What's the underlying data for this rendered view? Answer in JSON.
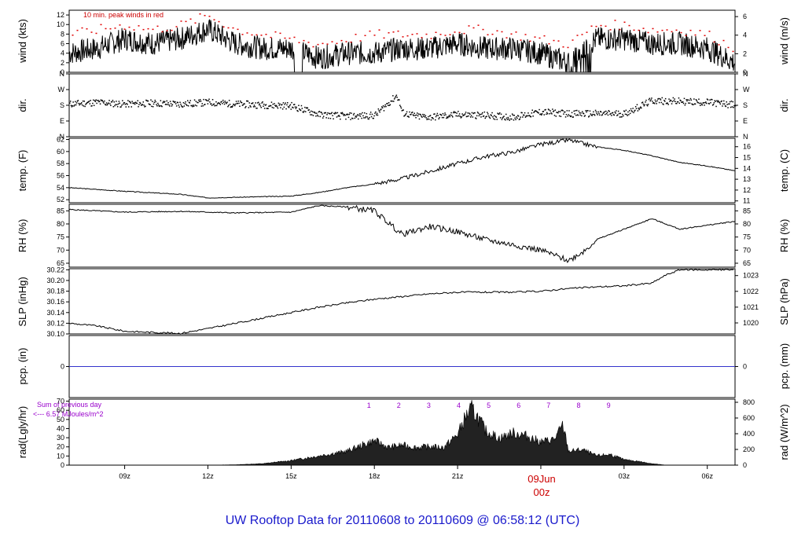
{
  "title": "UW Rooftop Data for 20110608  to  20110609 @ 06:58:12  (UTC)",
  "colors": {
    "peak": "#e00000",
    "precip_line": "#3333cc",
    "title": "#1a1acc",
    "note": "#9900cc",
    "date": "#cc0000"
  },
  "x_axis": {
    "ticks": [
      "09z",
      "12z",
      "15z",
      "18z",
      "21z",
      "03z",
      "06z"
    ],
    "date_label": "09Jun",
    "midnight_label": "00z"
  },
  "chart_data": [
    {
      "id": "wind",
      "type": "line",
      "ylabel_left": "wind (kts)",
      "ylabel_right": "wind (m/s)",
      "left_ticks": [
        "0",
        "2",
        "4",
        "6",
        "8",
        "10",
        "12"
      ],
      "right_ticks": [
        "0",
        "2",
        "4",
        "6"
      ],
      "annotation": "10 min. peak winds in red",
      "ylim": [
        0,
        13
      ],
      "hour_range": [
        7,
        31
      ],
      "series": [
        {
          "x": [
            7,
            8,
            9,
            10,
            11,
            12,
            13,
            14,
            15,
            16,
            17,
            18,
            19,
            20,
            21,
            22,
            23,
            24,
            25,
            26,
            27,
            28,
            29,
            30,
            31
          ],
          "y": [
            4,
            5,
            7,
            6,
            7,
            9,
            6,
            5,
            5,
            3,
            4,
            4,
            5,
            5,
            6,
            5,
            5,
            4,
            2,
            7,
            7,
            6,
            6,
            5,
            2
          ]
        },
        {
          "x": [
            7,
            8,
            9,
            10,
            11,
            12,
            13,
            14,
            15,
            16,
            17,
            18,
            19,
            20,
            21,
            22,
            23,
            24,
            25,
            26,
            27,
            28,
            29,
            30,
            31
          ],
          "y": [
            8,
            9,
            10,
            9,
            10,
            12,
            9,
            8,
            7,
            6,
            7,
            8,
            8,
            8,
            9,
            9,
            8,
            7,
            6,
            10,
            10,
            9,
            9,
            8,
            5
          ]
        }
      ]
    },
    {
      "id": "dir",
      "type": "scatter",
      "ylabel_left": "dir.",
      "ylabel_right": "dir.",
      "left_ticks": [
        "N",
        "E",
        "S",
        "W",
        "N"
      ],
      "right_ticks": [
        "N",
        "E",
        "S",
        "W",
        "N"
      ],
      "ylim": [
        0,
        360
      ],
      "series": [
        {
          "x": [
            7,
            8,
            9,
            10,
            11,
            12,
            13,
            14,
            15,
            16,
            17,
            18,
            18.8,
            19,
            19.5,
            20,
            21,
            22,
            23,
            24,
            25,
            26,
            27,
            28,
            29,
            30,
            31
          ],
          "y": [
            190,
            200,
            190,
            195,
            190,
            200,
            190,
            185,
            180,
            130,
            120,
            125,
            240,
            140,
            120,
            115,
            130,
            125,
            115,
            145,
            135,
            135,
            135,
            210,
            205,
            200,
            185
          ]
        }
      ]
    },
    {
      "id": "temp",
      "type": "line",
      "ylabel_left": "temp. (F)",
      "ylabel_right": "temp. (C)",
      "left_ticks": [
        "52",
        "54",
        "56",
        "58",
        "60",
        "62"
      ],
      "right_ticks": [
        "11",
        "12",
        "13",
        "14",
        "15",
        "16"
      ],
      "ylim": [
        51.5,
        62.2
      ],
      "series": [
        {
          "x": [
            7,
            9,
            11,
            12,
            14,
            15,
            16,
            17,
            18,
            19,
            20,
            21,
            22,
            23,
            24,
            25,
            26,
            27,
            28,
            29,
            30,
            31
          ],
          "y": [
            54,
            53.4,
            52.9,
            52.3,
            52.5,
            52.6,
            53.2,
            54.0,
            54.6,
            55.5,
            56.7,
            58.0,
            59.2,
            59.9,
            61.2,
            61.9,
            60.8,
            60.2,
            59.3,
            58.2,
            57.6,
            56.8
          ]
        }
      ]
    },
    {
      "id": "rh",
      "type": "line",
      "ylabel_left": "RH (%)",
      "ylabel_right": "RH (%)",
      "left_ticks": [
        "65",
        "70",
        "75",
        "80",
        "85"
      ],
      "right_ticks": [
        "65",
        "70",
        "75",
        "80",
        "85"
      ],
      "ylim": [
        63.5,
        87.5
      ],
      "series": [
        {
          "x": [
            7,
            9,
            11,
            13,
            15,
            16,
            17,
            18,
            19,
            20,
            21,
            22,
            23,
            24,
            25,
            25.6,
            26,
            27,
            28,
            29,
            30,
            31
          ],
          "y": [
            85.5,
            84.5,
            84.8,
            84.2,
            84.5,
            87,
            86.5,
            85,
            76,
            79,
            77,
            74,
            72,
            70,
            66,
            70,
            74,
            78,
            82,
            78,
            79.5,
            81
          ]
        }
      ]
    },
    {
      "id": "slp",
      "type": "line",
      "ylabel_left": "SLP (inHg)",
      "ylabel_right": "SLP (hPa)",
      "left_ticks": [
        "30.10",
        "30.12",
        "30.14",
        "30.16",
        "30.18",
        "30.20",
        "30.22"
      ],
      "right_ticks": [
        "1020",
        "1021",
        "1022",
        "1023"
      ],
      "ylim": [
        30.1,
        30.222
      ],
      "series": [
        {
          "x": [
            7,
            8,
            9,
            10,
            11,
            12,
            13,
            14,
            15,
            16,
            17,
            18,
            19,
            20,
            21,
            22,
            23,
            24,
            25,
            26,
            27,
            28,
            28.5,
            29,
            30,
            31
          ],
          "y": [
            30.12,
            30.115,
            30.105,
            30.103,
            30.101,
            30.11,
            30.12,
            30.13,
            30.14,
            30.15,
            30.158,
            30.165,
            30.17,
            30.175,
            30.178,
            30.178,
            30.178,
            30.18,
            30.185,
            30.188,
            30.19,
            30.195,
            30.21,
            30.22,
            30.22,
            30.22
          ]
        }
      ]
    },
    {
      "id": "pcp",
      "type": "line",
      "ylabel_left": "pcp. (in)",
      "ylabel_right": "pcp. (mm)",
      "left_ticks": [
        "0"
      ],
      "right_ticks": [
        "0"
      ],
      "ylim": [
        -1,
        1
      ],
      "series": [
        {
          "x": [
            7,
            31
          ],
          "y": [
            0,
            0
          ]
        }
      ]
    },
    {
      "id": "rad",
      "type": "area",
      "ylabel_left": "rad(Lgly/hr)",
      "ylabel_right": "rad (W/m^2)",
      "left_ticks": [
        "0",
        "10",
        "20",
        "30",
        "40",
        "50",
        "60",
        "70"
      ],
      "right_ticks": [
        "0",
        "200",
        "400",
        "600",
        "800"
      ],
      "ylim": [
        0,
        840
      ],
      "note_line1": "Sum of previous day",
      "note_line2": "<--- 6.57 MJoules/m^2",
      "hour_markers": [
        "1",
        "2",
        "3",
        "4",
        "5",
        "6",
        "7",
        "8",
        "9"
      ],
      "series": [
        {
          "x": [
            12,
            13,
            14,
            15,
            16,
            17,
            17.5,
            18,
            18.5,
            19,
            19.5,
            20,
            20.5,
            21,
            21.3,
            21.5,
            21.7,
            22,
            22.5,
            23,
            23.5,
            24,
            24.5,
            24.8,
            25,
            25.5,
            26,
            26.5,
            27,
            27.5,
            28,
            28.5
          ],
          "y": [
            0,
            5,
            20,
            60,
            120,
            180,
            250,
            320,
            230,
            260,
            230,
            240,
            230,
            400,
            640,
            730,
            640,
            450,
            350,
            420,
            380,
            300,
            340,
            520,
            180,
            200,
            120,
            140,
            70,
            50,
            20,
            0
          ]
        }
      ]
    }
  ]
}
